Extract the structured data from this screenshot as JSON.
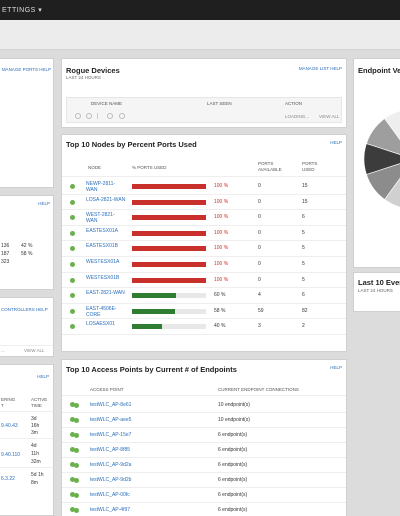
{
  "topbar": {
    "menu": "ETTINGS ▾"
  },
  "left_partial": {
    "links": "MANAGE PORTS  HELP",
    "help2": "HELP",
    "values": [
      "136",
      "42 %",
      "187",
      "58 %",
      "323"
    ],
    "controllers_link": "CONTROLLERS  HELP",
    "paging": "...",
    "view_all": "VIEW ALL",
    "help3": "HELP",
    "col_headers": [
      "ERING",
      "ACTIVE"
    ],
    "col_sub": [
      "T",
      "TIME"
    ],
    "rows": [
      {
        "addr": "9.40.43",
        "time": [
          "3d",
          "16h",
          "3m"
        ]
      },
      {
        "addr": "9.40.110",
        "time": [
          "4d",
          "11h",
          "32m"
        ]
      },
      {
        "addr": "6.3.22",
        "time": [
          "5d 1h",
          "8m"
        ]
      }
    ]
  },
  "rogue": {
    "title": "Rogue Devices",
    "subtitle": "LAST 24 HOURS",
    "links": "MANAGE LIST  HELP",
    "headers": [
      "DEVICE NAME",
      "LAST SEEN",
      "ACTION"
    ],
    "loading": "LOADING...",
    "view_all": "VIEW ALL"
  },
  "top_nodes": {
    "title": "Top 10 Nodes by Percent Ports Used",
    "help": "HELP",
    "headers": [
      "NODE",
      "% PORTS USED",
      "PORTS AVAILABLE",
      "PORTS USED"
    ],
    "colors": {
      "red": "#c9302c",
      "green": "#2e7d32",
      "status_ok": "#6ab04c"
    },
    "rows": [
      {
        "node": "NEWP-2811-WAN",
        "pct": 100,
        "pct_label": "100 %",
        "available": "0",
        "used": "15"
      },
      {
        "node": "LOSA-2821-WAN",
        "pct": 100,
        "pct_label": "100 %",
        "available": "0",
        "used": "15"
      },
      {
        "node": "WEST-2821-WAN",
        "pct": 100,
        "pct_label": "100 %",
        "available": "0",
        "used": "6"
      },
      {
        "node": "EASTESX01A",
        "pct": 100,
        "pct_label": "100 %",
        "available": "0",
        "used": "5"
      },
      {
        "node": "EASTESX01B",
        "pct": 100,
        "pct_label": "100 %",
        "available": "0",
        "used": "5"
      },
      {
        "node": "WESTESX01A",
        "pct": 100,
        "pct_label": "100 %",
        "available": "0",
        "used": "5"
      },
      {
        "node": "WESTESX01B",
        "pct": 100,
        "pct_label": "100 %",
        "available": "0",
        "used": "5"
      },
      {
        "node": "EAST-2821-WAN",
        "pct": 60,
        "pct_label": "60 %",
        "available": "4",
        "used": "6"
      },
      {
        "node": "EAST-4506E-CORE",
        "pct": 58,
        "pct_label": "58 %",
        "available": "59",
        "used": "82"
      },
      {
        "node": "LOSAESX01",
        "pct": 40,
        "pct_label": "40 %",
        "available": "3",
        "used": "2"
      }
    ]
  },
  "top_aps": {
    "title": "Top 10 Access Points by Current # of Endpoints",
    "help": "HELP",
    "headers": [
      "ACCESS POINT",
      "CURRENT ENDPOINT CONNECTIONS"
    ],
    "rows": [
      {
        "ap": "testWLC_AP-8e61",
        "count": "10 endpoint(s)"
      },
      {
        "ap": "testWLC_AP-aee5",
        "count": "10 endpoint(s)"
      },
      {
        "ap": "testWLC_AP-15e7",
        "count": "6 endpoint(s)"
      },
      {
        "ap": "testWLC_AP-8f85",
        "count": "6 endpoint(s)"
      },
      {
        "ap": "testWLC_AP-9d2a",
        "count": "6 endpoint(s)"
      },
      {
        "ap": "testWLC_AP-9d2b",
        "count": "6 endpoint(s)"
      },
      {
        "ap": "testWLC_AP-00fc",
        "count": "6 endpoint(s)"
      },
      {
        "ap": "testWLC_AP-4f97",
        "count": "6 endpoint(s)"
      }
    ]
  },
  "endpoint_panel": {
    "title": "Endpoint Ve",
    "pie_colors": [
      "#2f3a56",
      "#5b2a86",
      "#7a3fb0",
      "#a056d6",
      "#ffffff",
      "#d0d0d0",
      "#8c8c8c",
      "#3c3c3c",
      "#9e9e9e",
      "#eeeeee"
    ]
  },
  "last_events": {
    "title": "Last 10 Event",
    "subtitle": "LAST 24 HOURS"
  }
}
